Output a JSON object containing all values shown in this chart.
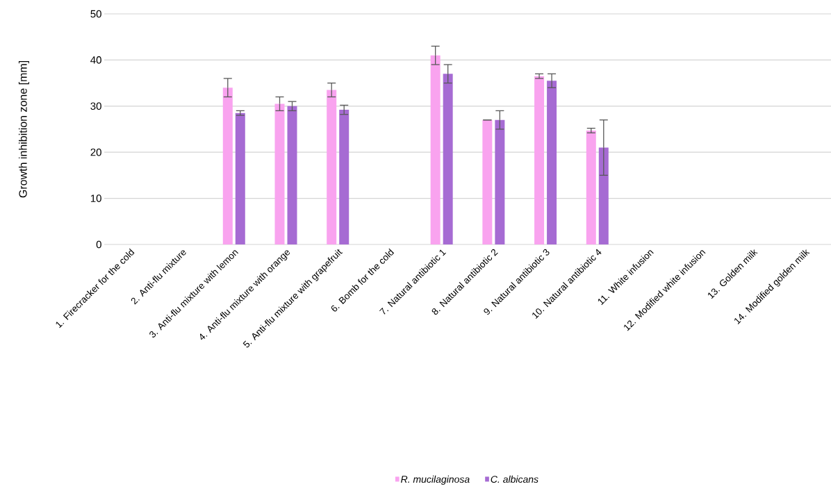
{
  "chart_data": {
    "type": "bar",
    "ylabel": "Growth inhibition zone [mm]",
    "categories": [
      "1. Firecracker for the cold",
      "2. Anti-flu mixture",
      "3. Anti-flu mixture with lemon",
      "4. Anti-flu mixture with orange",
      "5. Anti-flu mixture with grapefruit",
      "6. Bomb for the cold",
      "7. Natural antibiotic 1",
      "8. Natural antibiotic 2",
      "9. Natural antibiotic 3",
      "10. Natural antibiotic 4",
      "11. White infusion",
      "12. Modified white infusion",
      "13. Golden milk",
      "14. Modified golden milk"
    ],
    "series": [
      {
        "name": "R. mucilaginosa",
        "color": "#f9a3ef",
        "values": [
          0,
          0,
          34,
          30.5,
          33.5,
          0,
          41,
          27,
          36.5,
          24.7,
          0,
          0,
          0,
          0
        ],
        "errors": [
          null,
          null,
          2,
          1.5,
          1.5,
          null,
          2,
          0,
          0.5,
          0.5,
          null,
          null,
          null,
          null
        ]
      },
      {
        "name": "C. albicans",
        "color": "#a66bd3",
        "values": [
          0,
          0,
          28.5,
          30,
          29.2,
          0,
          37,
          27,
          35.5,
          21,
          0,
          0,
          0,
          0
        ],
        "errors": [
          null,
          null,
          0.5,
          1,
          1,
          null,
          2,
          2,
          1.5,
          6,
          null,
          null,
          null,
          null
        ]
      }
    ],
    "ylim": [
      0,
      50
    ],
    "yticks": [
      0,
      10,
      20,
      30,
      40,
      50
    ],
    "grid": "y",
    "legend": "bottom"
  }
}
